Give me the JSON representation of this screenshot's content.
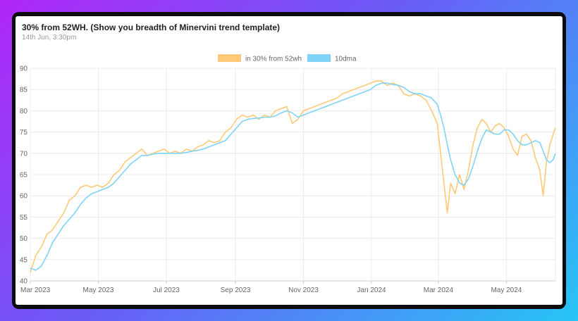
{
  "card": {
    "title": "30% from 52WH. (Show you breadth of Minervini trend template)",
    "subtitle": "14th Jun, 3:30pm"
  },
  "chart_data": {
    "type": "line",
    "title": "30% from 52WH. (Show you breadth of Minervini trend template)",
    "subtitle": "14th Jun, 3:30pm",
    "xlabel": "",
    "ylabel": "",
    "xlim": [
      "2023-03-01",
      "2024-06-14"
    ],
    "ylim": [
      40,
      90
    ],
    "y_ticks": [
      40,
      45,
      50,
      55,
      60,
      65,
      70,
      75,
      80,
      85,
      90
    ],
    "x_ticks": [
      {
        "date": "2023-03-01",
        "label": "Mar 2023"
      },
      {
        "date": "2023-05-01",
        "label": "May 2023"
      },
      {
        "date": "2023-07-01",
        "label": "Jul 2023"
      },
      {
        "date": "2023-09-01",
        "label": "Sep 2023"
      },
      {
        "date": "2023-11-01",
        "label": "Nov 2023"
      },
      {
        "date": "2024-01-01",
        "label": "Jan 2024"
      },
      {
        "date": "2024-03-01",
        "label": "Mar 2024"
      },
      {
        "date": "2024-05-01",
        "label": "May 2024"
      }
    ],
    "grid": true,
    "legend_position": "top-center",
    "series": [
      {
        "name": "in 30% from 52wh",
        "color": "#ffc978",
        "points": [
          [
            "2023-03-01",
            42
          ],
          [
            "2023-03-06",
            46
          ],
          [
            "2023-03-11",
            48
          ],
          [
            "2023-03-16",
            51
          ],
          [
            "2023-03-21",
            52
          ],
          [
            "2023-03-26",
            54
          ],
          [
            "2023-03-31",
            56
          ],
          [
            "2023-04-05",
            59
          ],
          [
            "2023-04-10",
            60
          ],
          [
            "2023-04-15",
            62
          ],
          [
            "2023-04-20",
            62.5
          ],
          [
            "2023-04-25",
            62
          ],
          [
            "2023-04-30",
            62.5
          ],
          [
            "2023-05-05",
            62
          ],
          [
            "2023-05-10",
            63
          ],
          [
            "2023-05-15",
            65
          ],
          [
            "2023-05-20",
            66
          ],
          [
            "2023-05-25",
            68
          ],
          [
            "2023-05-30",
            69
          ],
          [
            "2023-06-04",
            70
          ],
          [
            "2023-06-09",
            71
          ],
          [
            "2023-06-14",
            69.5
          ],
          [
            "2023-06-19",
            70
          ],
          [
            "2023-06-24",
            70.5
          ],
          [
            "2023-06-29",
            71
          ],
          [
            "2023-07-04",
            70
          ],
          [
            "2023-07-09",
            70.5
          ],
          [
            "2023-07-14",
            70
          ],
          [
            "2023-07-19",
            71
          ],
          [
            "2023-07-24",
            70.5
          ],
          [
            "2023-07-29",
            71.5
          ],
          [
            "2023-08-03",
            72
          ],
          [
            "2023-08-08",
            73
          ],
          [
            "2023-08-13",
            72.5
          ],
          [
            "2023-08-18",
            73
          ],
          [
            "2023-08-23",
            75
          ],
          [
            "2023-08-28",
            76
          ],
          [
            "2023-09-02",
            78
          ],
          [
            "2023-09-07",
            79
          ],
          [
            "2023-09-12",
            78.5
          ],
          [
            "2023-09-17",
            79
          ],
          [
            "2023-09-22",
            78
          ],
          [
            "2023-09-27",
            79
          ],
          [
            "2023-10-02",
            78.5
          ],
          [
            "2023-10-07",
            80
          ],
          [
            "2023-10-12",
            80.5
          ],
          [
            "2023-10-17",
            81
          ],
          [
            "2023-10-22",
            77
          ],
          [
            "2023-10-27",
            78
          ],
          [
            "2023-11-01",
            80
          ],
          [
            "2023-11-06",
            80.5
          ],
          [
            "2023-11-11",
            81
          ],
          [
            "2023-11-16",
            81.5
          ],
          [
            "2023-11-21",
            82
          ],
          [
            "2023-11-26",
            82.5
          ],
          [
            "2023-12-01",
            83
          ],
          [
            "2023-12-06",
            84
          ],
          [
            "2023-12-11",
            84.5
          ],
          [
            "2023-12-16",
            85
          ],
          [
            "2023-12-21",
            85.5
          ],
          [
            "2023-12-26",
            86
          ],
          [
            "2023-12-31",
            86.5
          ],
          [
            "2024-01-05",
            87
          ],
          [
            "2024-01-10",
            87
          ],
          [
            "2024-01-15",
            86
          ],
          [
            "2024-01-20",
            86.5
          ],
          [
            "2024-01-25",
            86
          ],
          [
            "2024-01-30",
            84
          ],
          [
            "2024-02-04",
            83.5
          ],
          [
            "2024-02-09",
            84
          ],
          [
            "2024-02-14",
            83.5
          ],
          [
            "2024-02-19",
            82.5
          ],
          [
            "2024-02-24",
            80
          ],
          [
            "2024-02-29",
            77
          ],
          [
            "2024-03-03",
            70
          ],
          [
            "2024-03-06",
            63
          ],
          [
            "2024-03-09",
            56
          ],
          [
            "2024-03-12",
            63
          ],
          [
            "2024-03-16",
            60.5
          ],
          [
            "2024-03-20",
            65
          ],
          [
            "2024-03-24",
            61.5
          ],
          [
            "2024-03-28",
            66
          ],
          [
            "2024-04-01",
            72
          ],
          [
            "2024-04-05",
            76
          ],
          [
            "2024-04-09",
            78
          ],
          [
            "2024-04-13",
            77
          ],
          [
            "2024-04-17",
            75
          ],
          [
            "2024-04-21",
            76.5
          ],
          [
            "2024-04-25",
            77
          ],
          [
            "2024-04-29",
            76
          ],
          [
            "2024-05-03",
            74
          ],
          [
            "2024-05-07",
            71
          ],
          [
            "2024-05-11",
            69.5
          ],
          [
            "2024-05-15",
            74
          ],
          [
            "2024-05-19",
            74.5
          ],
          [
            "2024-05-23",
            73
          ],
          [
            "2024-05-27",
            69
          ],
          [
            "2024-05-31",
            66
          ],
          [
            "2024-06-03",
            60
          ],
          [
            "2024-06-06",
            68
          ],
          [
            "2024-06-09",
            72
          ],
          [
            "2024-06-12",
            74.5
          ],
          [
            "2024-06-14",
            76
          ]
        ]
      },
      {
        "name": "10dma",
        "color": "#7fd3f7",
        "points": [
          [
            "2023-03-01",
            43
          ],
          [
            "2023-03-06",
            42.5
          ],
          [
            "2023-03-11",
            43.5
          ],
          [
            "2023-03-16",
            46
          ],
          [
            "2023-03-21",
            49
          ],
          [
            "2023-03-26",
            51
          ],
          [
            "2023-03-31",
            53
          ],
          [
            "2023-04-05",
            54.5
          ],
          [
            "2023-04-10",
            56
          ],
          [
            "2023-04-15",
            58
          ],
          [
            "2023-04-20",
            59.5
          ],
          [
            "2023-04-25",
            60.5
          ],
          [
            "2023-04-30",
            61
          ],
          [
            "2023-05-05",
            61.5
          ],
          [
            "2023-05-10",
            62
          ],
          [
            "2023-05-15",
            63
          ],
          [
            "2023-05-20",
            64.5
          ],
          [
            "2023-05-25",
            66
          ],
          [
            "2023-05-30",
            67.5
          ],
          [
            "2023-06-04",
            68.5
          ],
          [
            "2023-06-09",
            69.5
          ],
          [
            "2023-06-14",
            69.5
          ],
          [
            "2023-06-19",
            69.8
          ],
          [
            "2023-06-24",
            70
          ],
          [
            "2023-06-29",
            70
          ],
          [
            "2023-07-04",
            70
          ],
          [
            "2023-07-09",
            70
          ],
          [
            "2023-07-14",
            70
          ],
          [
            "2023-07-19",
            70.2
          ],
          [
            "2023-07-24",
            70.5
          ],
          [
            "2023-07-29",
            70.7
          ],
          [
            "2023-08-03",
            71
          ],
          [
            "2023-08-08",
            71.5
          ],
          [
            "2023-08-13",
            72
          ],
          [
            "2023-08-18",
            72.5
          ],
          [
            "2023-08-23",
            73
          ],
          [
            "2023-08-28",
            74.5
          ],
          [
            "2023-09-02",
            76
          ],
          [
            "2023-09-07",
            77.5
          ],
          [
            "2023-09-12",
            78
          ],
          [
            "2023-09-17",
            78.2
          ],
          [
            "2023-09-22",
            78.3
          ],
          [
            "2023-09-27",
            78.5
          ],
          [
            "2023-10-02",
            78.5
          ],
          [
            "2023-10-07",
            78.8
          ],
          [
            "2023-10-12",
            79.5
          ],
          [
            "2023-10-17",
            80
          ],
          [
            "2023-10-22",
            79.5
          ],
          [
            "2023-10-27",
            78.5
          ],
          [
            "2023-11-01",
            79
          ],
          [
            "2023-11-06",
            79.5
          ],
          [
            "2023-11-11",
            80
          ],
          [
            "2023-11-16",
            80.5
          ],
          [
            "2023-11-21",
            81
          ],
          [
            "2023-11-26",
            81.5
          ],
          [
            "2023-12-01",
            82
          ],
          [
            "2023-12-06",
            82.5
          ],
          [
            "2023-12-11",
            83
          ],
          [
            "2023-12-16",
            83.5
          ],
          [
            "2023-12-21",
            84
          ],
          [
            "2023-12-26",
            84.5
          ],
          [
            "2023-12-31",
            85
          ],
          [
            "2024-01-05",
            86
          ],
          [
            "2024-01-10",
            86.5
          ],
          [
            "2024-01-15",
            86.5
          ],
          [
            "2024-01-20",
            86.2
          ],
          [
            "2024-01-25",
            86
          ],
          [
            "2024-01-30",
            85.5
          ],
          [
            "2024-02-04",
            84.5
          ],
          [
            "2024-02-09",
            84
          ],
          [
            "2024-02-14",
            84
          ],
          [
            "2024-02-19",
            83.5
          ],
          [
            "2024-02-24",
            83
          ],
          [
            "2024-02-29",
            81.5
          ],
          [
            "2024-03-03",
            79
          ],
          [
            "2024-03-06",
            76
          ],
          [
            "2024-03-09",
            72
          ],
          [
            "2024-03-12",
            68.5
          ],
          [
            "2024-03-16",
            65
          ],
          [
            "2024-03-20",
            63
          ],
          [
            "2024-03-24",
            62.5
          ],
          [
            "2024-03-28",
            64
          ],
          [
            "2024-04-01",
            67
          ],
          [
            "2024-04-05",
            70.5
          ],
          [
            "2024-04-09",
            73.5
          ],
          [
            "2024-04-13",
            75.5
          ],
          [
            "2024-04-17",
            75
          ],
          [
            "2024-04-21",
            74.5
          ],
          [
            "2024-04-25",
            74.5
          ],
          [
            "2024-04-29",
            75.5
          ],
          [
            "2024-05-03",
            75.5
          ],
          [
            "2024-05-07",
            74.5
          ],
          [
            "2024-05-11",
            73
          ],
          [
            "2024-05-15",
            72
          ],
          [
            "2024-05-19",
            72
          ],
          [
            "2024-05-23",
            72.5
          ],
          [
            "2024-05-27",
            73
          ],
          [
            "2024-05-31",
            72.5
          ],
          [
            "2024-06-03",
            70.5
          ],
          [
            "2024-06-06",
            68.5
          ],
          [
            "2024-06-09",
            67.8
          ],
          [
            "2024-06-12",
            68.5
          ],
          [
            "2024-06-14",
            70
          ]
        ]
      }
    ]
  }
}
